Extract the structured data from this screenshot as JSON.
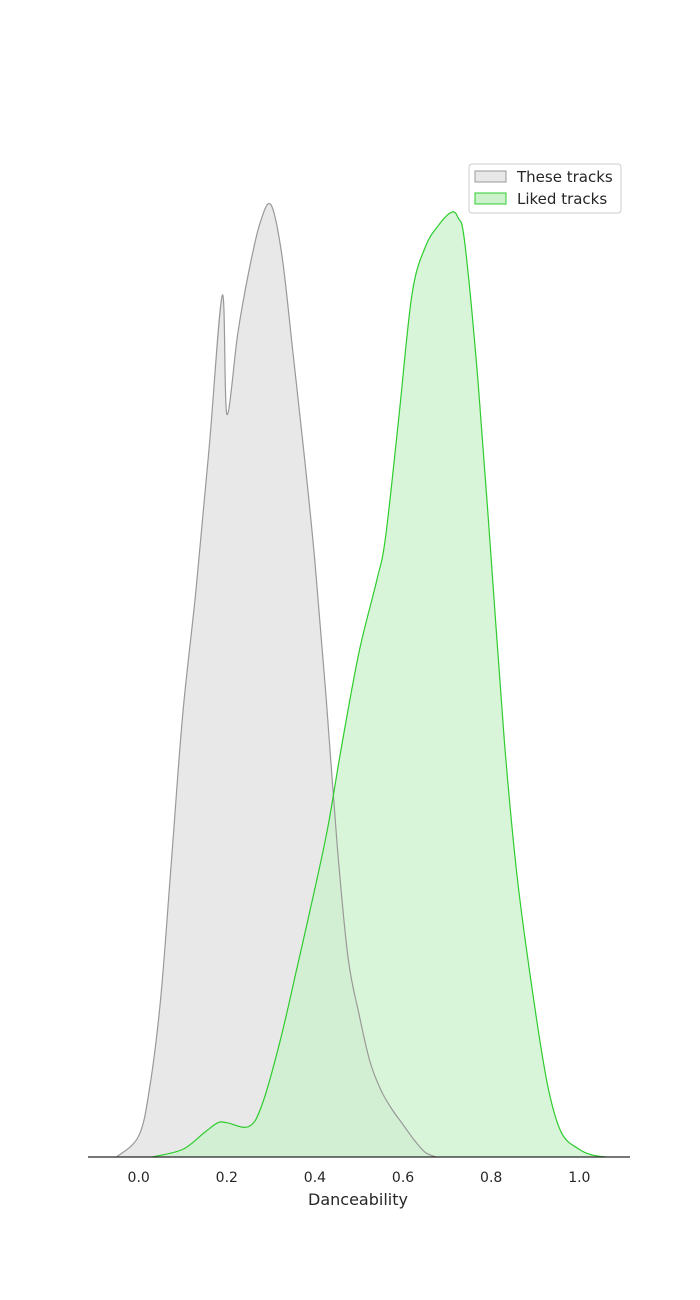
{
  "chart_data": {
    "type": "area",
    "xlabel": "Danceability",
    "xlim": [
      -0.115,
      1.115
    ],
    "ylim": [
      0,
      1.05
    ],
    "x_ticks": [
      0.0,
      0.2,
      0.4,
      0.6,
      0.8,
      1.0
    ],
    "x_tick_labels": [
      "0.0",
      "0.2",
      "0.4",
      "0.6",
      "0.8",
      "1.0"
    ],
    "y_axis_visible": false,
    "grid": false,
    "legend": {
      "placement": "top-right",
      "entries": [
        "These tracks",
        "Liked tracks"
      ]
    },
    "series": [
      {
        "name": "These tracks",
        "line_color": "#999999",
        "fill_color": "#e8e8e8",
        "x": [
          -0.05,
          0.0,
          0.025,
          0.05,
          0.075,
          0.1,
          0.13,
          0.16,
          0.19,
          0.2,
          0.225,
          0.25,
          0.275,
          0.3,
          0.325,
          0.35,
          0.375,
          0.4,
          0.425,
          0.45,
          0.475,
          0.5,
          0.525,
          0.55,
          0.575,
          0.6,
          0.625,
          0.65,
          0.675
        ],
        "y": [
          0.0,
          0.022,
          0.073,
          0.167,
          0.315,
          0.465,
          0.595,
          0.745,
          0.905,
          0.78,
          0.865,
          0.93,
          0.98,
          1.0,
          0.947,
          0.845,
          0.74,
          0.625,
          0.485,
          0.33,
          0.21,
          0.15,
          0.1,
          0.07,
          0.05,
          0.034,
          0.018,
          0.005,
          0.0
        ]
      },
      {
        "name": "Liked tracks",
        "line_color": "#2ecc2e",
        "fill_color": "#ccf2cc",
        "x": [
          0.03,
          0.1,
          0.15,
          0.18,
          0.2,
          0.25,
          0.28,
          0.32,
          0.36,
          0.4,
          0.43,
          0.46,
          0.5,
          0.54,
          0.56,
          0.59,
          0.62,
          0.65,
          0.68,
          0.71,
          0.725,
          0.74,
          0.77,
          0.8,
          0.83,
          0.86,
          0.9,
          0.93,
          0.96,
          1.0,
          1.03,
          1.06
        ],
        "y": [
          0.0,
          0.008,
          0.026,
          0.036,
          0.036,
          0.032,
          0.055,
          0.12,
          0.2,
          0.282,
          0.348,
          0.43,
          0.53,
          0.605,
          0.65,
          0.775,
          0.905,
          0.955,
          0.978,
          0.992,
          0.986,
          0.96,
          0.815,
          0.628,
          0.436,
          0.29,
          0.154,
          0.071,
          0.025,
          0.008,
          0.002,
          0.0
        ]
      }
    ]
  }
}
